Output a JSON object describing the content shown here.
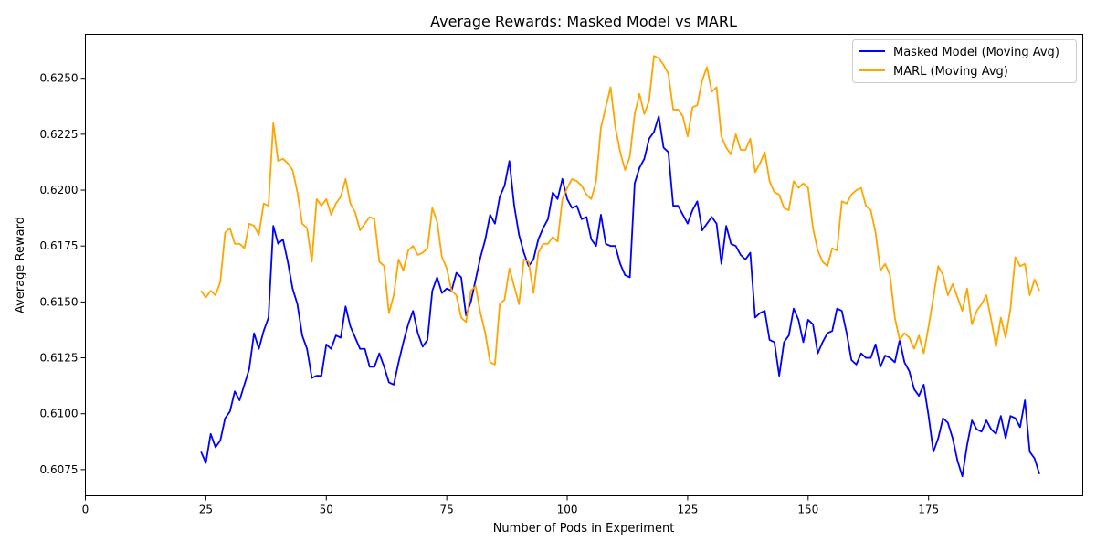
{
  "chart_data": {
    "type": "line",
    "title": "Average Rewards: Masked Model vs MARL",
    "xlabel": "Number of Pods in Experiment",
    "ylabel": "Average Reward",
    "xlim": [
      0,
      207
    ],
    "ylim": [
      0.60633,
      0.62697
    ],
    "xticks": [
      0,
      25,
      50,
      75,
      100,
      125,
      150,
      175
    ],
    "yticks": [
      0.6075,
      0.61,
      0.6125,
      0.615,
      0.6175,
      0.62,
      0.6225,
      0.625
    ],
    "ytick_labels": [
      "0.6075",
      "0.6100",
      "0.6125",
      "0.6150",
      "0.6175",
      "0.6200",
      "0.6225",
      "0.6250"
    ],
    "grid": false,
    "legend_position": "top-right",
    "x": [
      24,
      25,
      26,
      27,
      28,
      29,
      30,
      31,
      32,
      33,
      34,
      35,
      36,
      37,
      38,
      39,
      40,
      41,
      42,
      43,
      44,
      45,
      46,
      47,
      48,
      49,
      50,
      51,
      52,
      53,
      54,
      55,
      56,
      57,
      58,
      59,
      60,
      61,
      62,
      63,
      64,
      65,
      66,
      67,
      68,
      69,
      70,
      71,
      72,
      73,
      74,
      75,
      76,
      77,
      78,
      79,
      80,
      81,
      82,
      83,
      84,
      85,
      86,
      87,
      88,
      89,
      90,
      91,
      92,
      93,
      94,
      95,
      96,
      97,
      98,
      99,
      100,
      101,
      102,
      103,
      104,
      105,
      106,
      107,
      108,
      109,
      110,
      111,
      112,
      113,
      114,
      115,
      116,
      117,
      118,
      119,
      120,
      121,
      122,
      123,
      124,
      125,
      126,
      127,
      128,
      129,
      130,
      131,
      132,
      133,
      134,
      135,
      136,
      137,
      138,
      139,
      140,
      141,
      142,
      143,
      144,
      145,
      146,
      147,
      148,
      149,
      150,
      151,
      152,
      153,
      154,
      155,
      156,
      157,
      158,
      159,
      160,
      161,
      162,
      163,
      164,
      165,
      166,
      167,
      168,
      169,
      170,
      171,
      172,
      173,
      174,
      175,
      176,
      177,
      178,
      179,
      180,
      181,
      182,
      183,
      184,
      185,
      186,
      187,
      188,
      189,
      190,
      191,
      192,
      193,
      194,
      195,
      196,
      197,
      198
    ],
    "series": [
      {
        "name": "Masked Model (Moving Avg)",
        "color": "#0000ff",
        "values": [
          0.6083,
          0.6078,
          0.6091,
          0.6085,
          0.6088,
          0.6098,
          0.6101,
          0.611,
          0.6106,
          0.6113,
          0.612,
          0.6136,
          0.6129,
          0.6137,
          0.6143,
          0.6184,
          0.6176,
          0.6178,
          0.6168,
          0.6156,
          0.6149,
          0.6135,
          0.6129,
          0.6116,
          0.6117,
          0.6117,
          0.6131,
          0.6129,
          0.6135,
          0.6134,
          0.6148,
          0.6139,
          0.6134,
          0.6129,
          0.6129,
          0.6121,
          0.6121,
          0.6127,
          0.6121,
          0.6114,
          0.6113,
          0.6123,
          0.6132,
          0.614,
          0.6146,
          0.6136,
          0.613,
          0.6133,
          0.6155,
          0.6161,
          0.6154,
          0.6156,
          0.6155,
          0.6163,
          0.6161,
          0.6144,
          0.615,
          0.616,
          0.617,
          0.6178,
          0.6189,
          0.6185,
          0.6197,
          0.6202,
          0.6213,
          0.6193,
          0.618,
          0.6172,
          0.6166,
          0.6169,
          0.6178,
          0.6183,
          0.6187,
          0.6199,
          0.6196,
          0.6205,
          0.6196,
          0.6192,
          0.6193,
          0.6187,
          0.6188,
          0.6178,
          0.6175,
          0.6189,
          0.6176,
          0.6175,
          0.6175,
          0.6167,
          0.6162,
          0.6161,
          0.6203,
          0.621,
          0.6214,
          0.6223,
          0.6226,
          0.6233,
          0.6219,
          0.6217,
          0.6193,
          0.6193,
          0.6189,
          0.6185,
          0.6191,
          0.6195,
          0.6182,
          0.6185,
          0.6188,
          0.6185,
          0.6167,
          0.6184,
          0.6176,
          0.6175,
          0.6171,
          0.6169,
          0.6172,
          0.6143,
          0.6145,
          0.6146,
          0.6133,
          0.6132,
          0.6117,
          0.6132,
          0.6135,
          0.6147,
          0.6142,
          0.6132,
          0.6142,
          0.614,
          0.6127,
          0.6132,
          0.6136,
          0.6137,
          0.6147,
          0.6146,
          0.6136,
          0.6124,
          0.6122,
          0.6127,
          0.6125,
          0.6125,
          0.6131,
          0.6121,
          0.6126,
          0.6125,
          0.6123,
          0.6133,
          0.6123,
          0.6119,
          0.6111,
          0.6108,
          0.6113,
          0.6099,
          0.6083,
          0.6089,
          0.6098,
          0.6096,
          0.6089,
          0.6079,
          0.6072,
          0.6086,
          0.6097,
          0.6093,
          0.6092,
          0.6097,
          0.6093,
          0.6091,
          0.6099,
          0.6089,
          0.6099,
          0.6098,
          0.6094,
          0.6106,
          0.6083,
          0.608,
          0.6073
        ]
      },
      {
        "name": "MARL (Moving Avg)",
        "color": "#ffa500",
        "values": [
          0.6155,
          0.6152,
          0.6155,
          0.6153,
          0.6159,
          0.6181,
          0.6183,
          0.6176,
          0.6176,
          0.6174,
          0.6185,
          0.6184,
          0.618,
          0.6194,
          0.6193,
          0.623,
          0.6213,
          0.6214,
          0.6212,
          0.6209,
          0.6199,
          0.6185,
          0.6183,
          0.6168,
          0.6196,
          0.6193,
          0.6196,
          0.6189,
          0.6194,
          0.6197,
          0.6205,
          0.6194,
          0.619,
          0.6182,
          0.6185,
          0.6188,
          0.6187,
          0.6168,
          0.6166,
          0.6145,
          0.6153,
          0.6169,
          0.6164,
          0.6173,
          0.6175,
          0.6171,
          0.6172,
          0.6174,
          0.6192,
          0.6186,
          0.617,
          0.6165,
          0.6155,
          0.6153,
          0.6143,
          0.6141,
          0.6155,
          0.6157,
          0.6145,
          0.6136,
          0.6123,
          0.6122,
          0.6149,
          0.6151,
          0.6165,
          0.6157,
          0.6149,
          0.6169,
          0.6168,
          0.6154,
          0.6172,
          0.6176,
          0.6176,
          0.6179,
          0.6177,
          0.6196,
          0.6201,
          0.6205,
          0.6204,
          0.6202,
          0.6198,
          0.6196,
          0.6204,
          0.6228,
          0.6237,
          0.6246,
          0.6228,
          0.6217,
          0.6209,
          0.6215,
          0.6234,
          0.6243,
          0.6234,
          0.624,
          0.626,
          0.6259,
          0.6256,
          0.6252,
          0.6236,
          0.6236,
          0.6233,
          0.6224,
          0.6237,
          0.6238,
          0.6249,
          0.6255,
          0.6244,
          0.6246,
          0.6224,
          0.6219,
          0.6216,
          0.6225,
          0.6218,
          0.6218,
          0.6223,
          0.6208,
          0.6212,
          0.6217,
          0.6204,
          0.6199,
          0.6198,
          0.6192,
          0.6191,
          0.6204,
          0.6201,
          0.6203,
          0.6201,
          0.6183,
          0.6173,
          0.6168,
          0.6166,
          0.6174,
          0.6173,
          0.6195,
          0.6194,
          0.6198,
          0.62,
          0.6201,
          0.6193,
          0.6191,
          0.6181,
          0.6164,
          0.6167,
          0.6162,
          0.6143,
          0.6133,
          0.6136,
          0.6134,
          0.6129,
          0.6135,
          0.6127,
          0.6139,
          0.6152,
          0.6166,
          0.6162,
          0.6153,
          0.6158,
          0.6152,
          0.6146,
          0.6156,
          0.614,
          0.6146,
          0.6149,
          0.6153,
          0.6142,
          0.613,
          0.6143,
          0.6134,
          0.6147,
          0.617,
          0.6166,
          0.6167,
          0.6153,
          0.616,
          0.6155
        ]
      }
    ]
  }
}
